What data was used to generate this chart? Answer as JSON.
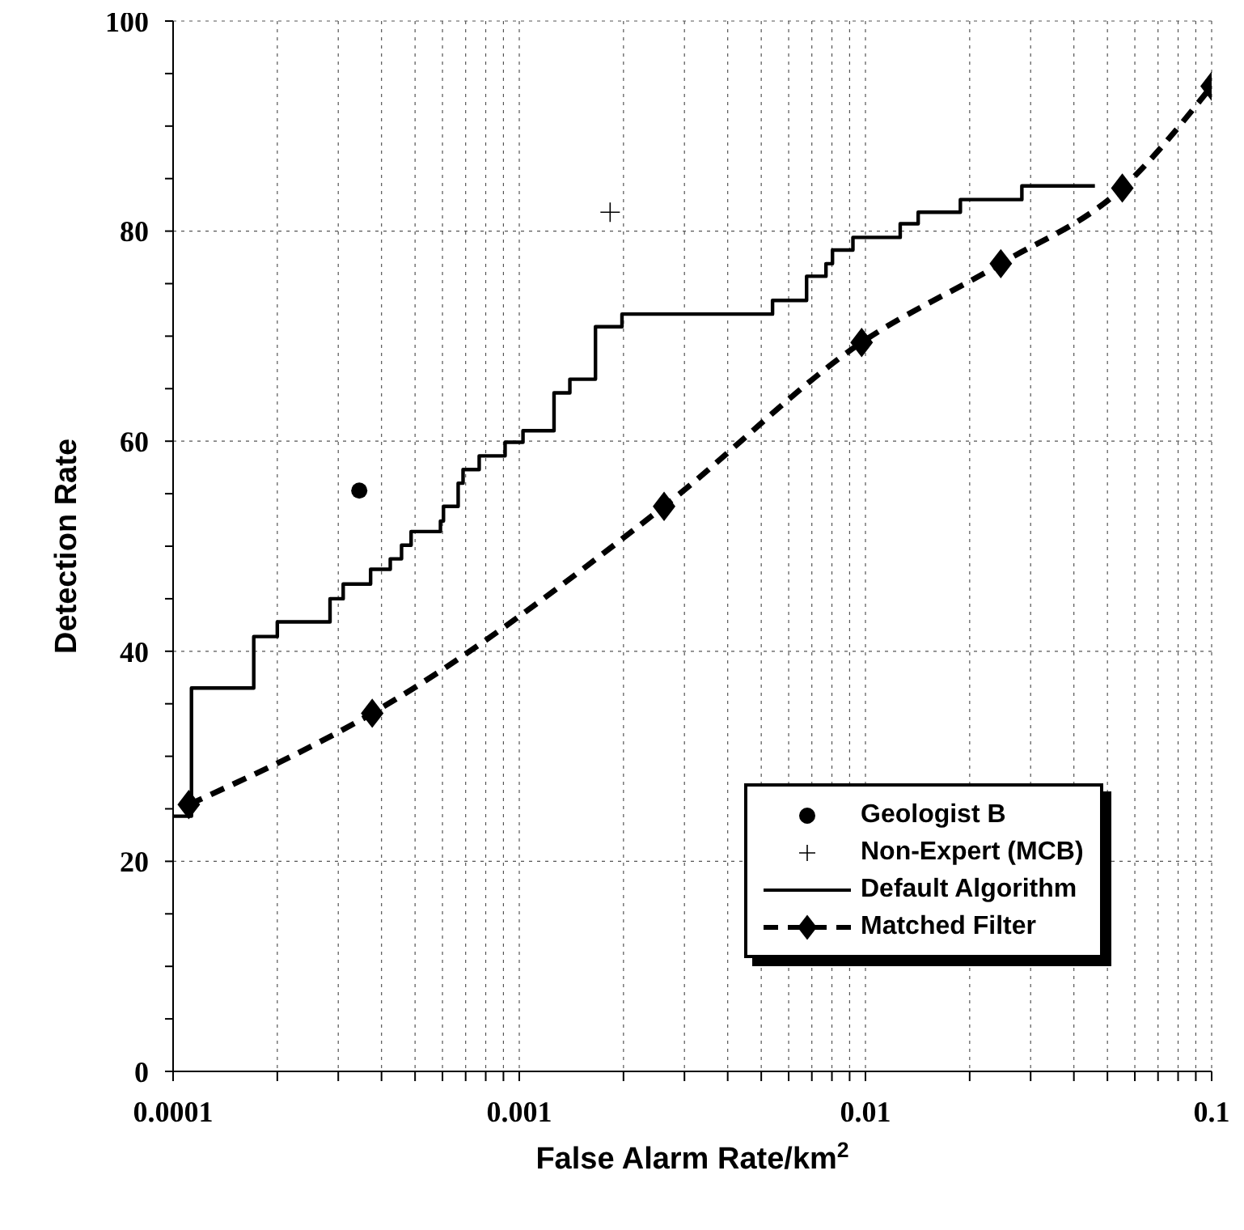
{
  "chart_data": {
    "type": "line",
    "xlabel": "False Alarm Rate/km$^{2}$",
    "ylabel": "Detection Rate",
    "log": "x",
    "xlim": [
      0.0001,
      0.1
    ],
    "ylim": [
      0,
      100
    ],
    "xticks": [
      0.0001,
      {
        "value": 0.0002,
        "label": null
      },
      {
        "value": 0.0003,
        "label": null
      },
      {
        "value": 0.0004,
        "label": null
      },
      {
        "value": 0.0005,
        "label": null
      },
      {
        "value": 0.0006,
        "label": null
      },
      {
        "value": 0.0007,
        "label": null
      },
      {
        "value": 0.0008,
        "label": null
      },
      {
        "value": 0.0009,
        "label": null
      },
      0.001,
      {
        "value": 0.002,
        "label": null
      },
      {
        "value": 0.003,
        "label": null
      },
      {
        "value": 0.004,
        "label": null
      },
      {
        "value": 0.005,
        "label": null
      },
      {
        "value": 0.006,
        "label": null
      },
      {
        "value": 0.007,
        "label": null
      },
      {
        "value": 0.008,
        "label": null
      },
      {
        "value": 0.009,
        "label": null
      },
      0.01,
      {
        "value": 0.02,
        "label": null
      },
      {
        "value": 0.03,
        "label": null
      },
      {
        "value": 0.04,
        "label": null
      },
      {
        "value": 0.05,
        "label": null
      },
      {
        "value": 0.06,
        "label": null
      },
      {
        "value": 0.07,
        "label": null
      },
      {
        "value": 0.08,
        "label": null
      },
      {
        "value": 0.09,
        "label": null
      },
      0.1
    ],
    "yticks": [
      0,
      {
        "value": 5,
        "label": null
      },
      {
        "value": 10,
        "label": null
      },
      {
        "value": 15,
        "label": null
      },
      20,
      {
        "value": 25,
        "label": null
      },
      {
        "value": 30,
        "label": null
      },
      {
        "value": 35,
        "label": null
      },
      40,
      {
        "value": 45,
        "label": null
      },
      {
        "value": 50,
        "label": null
      },
      {
        "value": 55,
        "label": null
      },
      60,
      {
        "value": 65,
        "label": null
      },
      {
        "value": 70,
        "label": null
      },
      {
        "value": 75,
        "label": null
      },
      80,
      {
        "value": 85,
        "label": null
      },
      {
        "value": 90,
        "label": null
      },
      {
        "value": 95,
        "label": null
      },
      100
    ],
    "grid": true,
    "legend": "bottom right",
    "series": [
      {
        "name": "Geologist B",
        "type": "scatter",
        "color": "#000000",
        "marker": "circle",
        "x": [
          0.000345
        ],
        "values": [
          55.3
        ]
      },
      {
        "name": "Non-Expert (MCB)",
        "type": "scatter",
        "color": "#000000",
        "marker": "cross",
        "x": [
          0.00183
        ],
        "values": [
          81.8
        ]
      },
      {
        "name": "Default Algorithm",
        "type": "step",
        "color": "#000000",
        "marker": "none",
        "line_style": "solid",
        "x": [
          0.0001,
          0.000113,
          0.000171,
          0.0002,
          0.000284,
          0.00031,
          0.000372,
          0.000424,
          0.000457,
          0.000487,
          0.000592,
          0.000604,
          0.000666,
          0.000688,
          0.000766,
          0.00091,
          0.001025,
          0.00126,
          0.0014,
          0.00166,
          0.00198,
          0.00539,
          0.00676,
          0.00769,
          0.00803,
          0.0092,
          0.0126,
          0.0142,
          0.0188,
          0.0283,
          0.046
        ],
        "values": [
          24.3,
          36.5,
          41.4,
          42.8,
          45,
          46.4,
          47.8,
          48.8,
          50.1,
          51.4,
          52.4,
          53.8,
          56,
          57.3,
          58.6,
          59.9,
          61,
          64.6,
          65.9,
          70.9,
          72.1,
          73.4,
          75.7,
          76.9,
          78.2,
          79.4,
          80.7,
          81.8,
          83,
          84.3,
          84.3
        ]
      },
      {
        "name": "Matched Filter",
        "color": "#000000",
        "marker": "diamond",
        "line_style": "dashed",
        "x": [
          0.000111,
          0.000376,
          0.00262,
          0.00975,
          0.0246,
          0.0552,
          0.1
        ],
        "values": [
          25.4,
          34.1,
          53.8,
          69.4,
          76.9,
          84.1,
          93.8
        ]
      }
    ]
  }
}
